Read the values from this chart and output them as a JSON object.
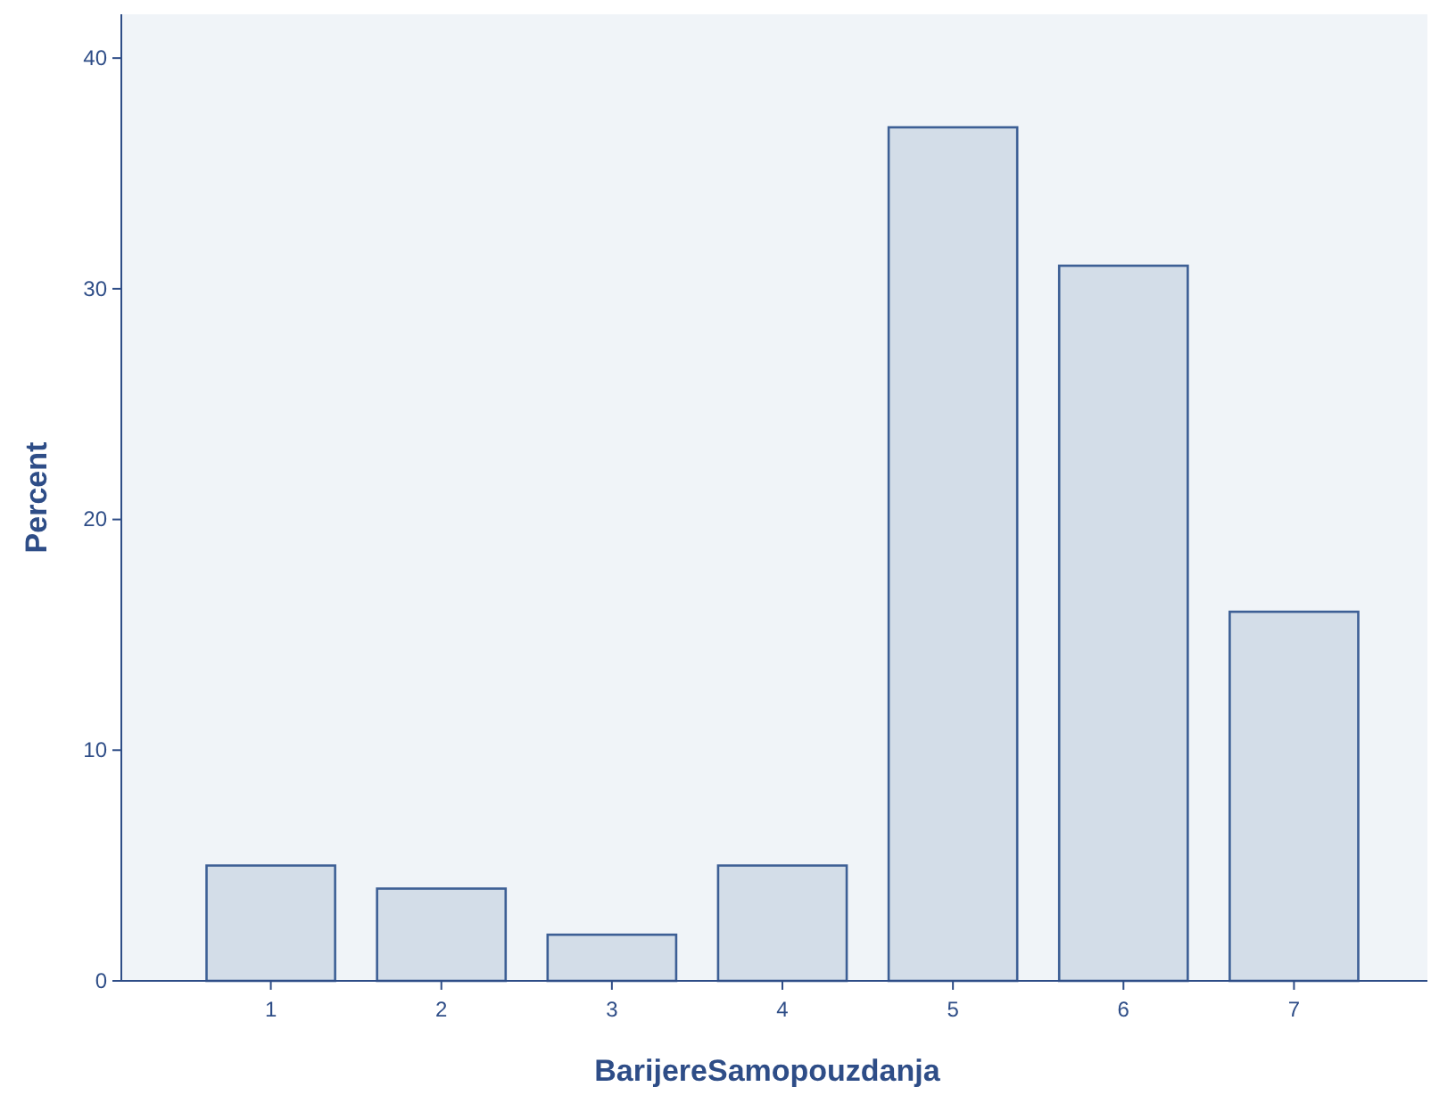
{
  "chart_data": {
    "type": "bar",
    "xlabel": "BarijereSamopouzdanja",
    "ylabel": "Percent",
    "categories": [
      "1",
      "2",
      "3",
      "4",
      "5",
      "6",
      "7"
    ],
    "values": [
      5,
      4,
      2,
      5,
      37,
      31,
      16
    ],
    "color": "#d3dde8",
    "ylim": [
      0,
      41.9
    ],
    "yticks": [
      0,
      10,
      20,
      30,
      40
    ],
    "grid": false
  }
}
